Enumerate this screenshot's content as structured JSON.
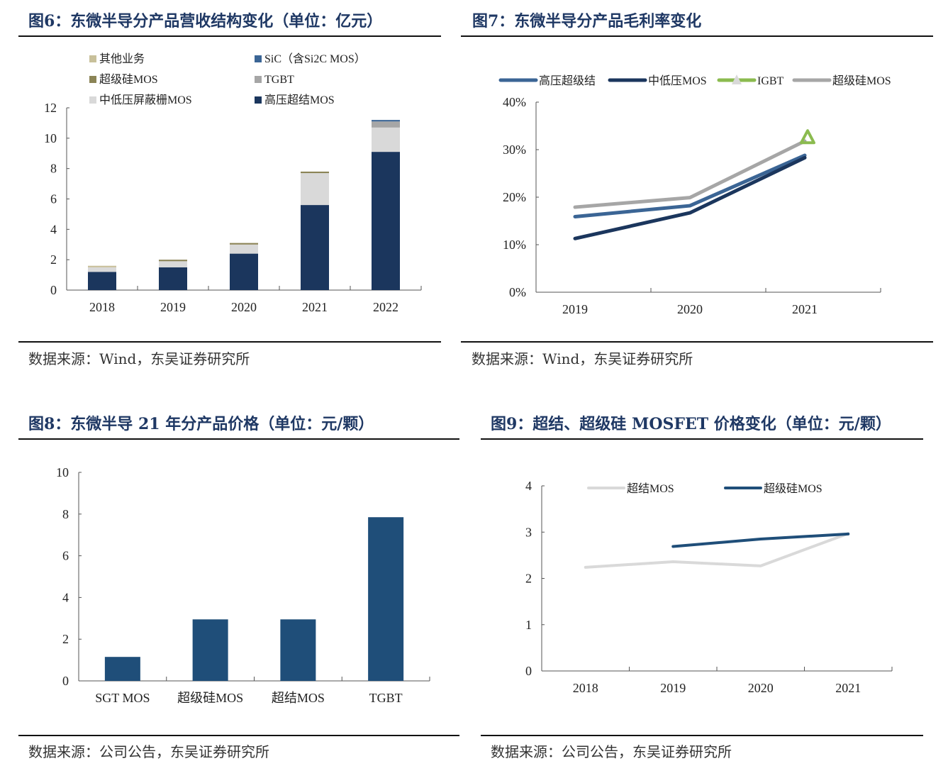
{
  "colors": {
    "title": "#1f3864",
    "navy": "#1b365d",
    "mid_blue": "#3b6595",
    "grey": "#a6a6a6",
    "light_grey": "#d9d9d9",
    "olive": "#8b8456",
    "khaki": "#c8c09a",
    "green": "#8bbb4f",
    "bar_blue": "#1f4e79"
  },
  "figures": {
    "fig6": {
      "title": "图6：东微半导分产品营收结构变化（单位：亿元）",
      "source": "数据来源：Wind，东吴证券研究所"
    },
    "fig7": {
      "title": "图7：东微半导分产品毛利率变化",
      "source": "数据来源：Wind，东吴证券研究所"
    },
    "fig8": {
      "title": "图8：东微半导 21 年分产品价格（单位：元/颗）",
      "source": "数据来源：公司公告，东吴证券研究所"
    },
    "fig9": {
      "title": "图9：超结、超级硅 MOSFET 价格变化（单位：元/颗）",
      "source": "数据来源：公司公告，东吴证券研究所"
    }
  },
  "chart_data": [
    {
      "type": "bar",
      "stacked": true,
      "title": "图6：东微半导分产品营收结构变化（单位：亿元）",
      "categories": [
        "2018",
        "2019",
        "2020",
        "2021",
        "2022"
      ],
      "ylim": [
        0,
        12
      ],
      "yticks": [
        "0",
        "2",
        "4",
        "6",
        "8",
        "10",
        "12"
      ],
      "legend_position": "top",
      "series": [
        {
          "name": "高压超结MOS",
          "color": "#1b365d",
          "values": [
            1.2,
            1.5,
            2.4,
            5.6,
            9.1
          ]
        },
        {
          "name": "中低压屏蔽栅MOS",
          "color": "#d9d9d9",
          "values": [
            0.3,
            0.4,
            0.6,
            2.1,
            1.6
          ]
        },
        {
          "name": "TGBT",
          "color": "#a6a6a6",
          "values": [
            0,
            0,
            0,
            0,
            0.4
          ]
        },
        {
          "name": "超级硅MOS",
          "color": "#8b8456",
          "values": [
            0,
            0.1,
            0.1,
            0.1,
            0
          ]
        },
        {
          "name": "SiC（含Si2C MOS）",
          "color": "#3b6595",
          "values": [
            0,
            0,
            0,
            0,
            0.1
          ]
        },
        {
          "name": "其他业务",
          "color": "#c8c09a",
          "values": [
            0.1,
            0,
            0,
            0,
            0
          ]
        }
      ],
      "legend_order": [
        "其他业务",
        "SiC（含Si2C MOS）",
        "超级硅MOS",
        "TGBT",
        "中低压屏蔽栅MOS",
        "高压超结MOS"
      ]
    },
    {
      "type": "line",
      "title": "图7：东微半导分产品毛利率变化",
      "categories": [
        "2019",
        "2020",
        "2021"
      ],
      "ylim": [
        0,
        40
      ],
      "yticks": [
        "0%",
        "10%",
        "20%",
        "30%",
        "40%"
      ],
      "legend_position": "top",
      "series": [
        {
          "name": "高压超级结",
          "color": "#3b6595",
          "values": [
            15.9,
            18.2,
            28.8
          ]
        },
        {
          "name": "中低压MOS",
          "color": "#1b365d",
          "values": [
            11.3,
            16.7,
            28.3
          ]
        },
        {
          "name": "IGBT",
          "color": "#8bbb4f",
          "marker": "triangle",
          "values": [
            null,
            null,
            32.5
          ]
        },
        {
          "name": "超级硅MOS",
          "color": "#a6a6a6",
          "values": [
            17.9,
            19.9,
            31.8
          ]
        }
      ]
    },
    {
      "type": "bar",
      "title": "图8：东微半导 21 年分产品价格（单位：元/颗）",
      "categories": [
        "SGT MOS",
        "超级硅MOS",
        "超结MOS",
        "TGBT"
      ],
      "values": [
        1.15,
        2.95,
        2.95,
        7.85
      ],
      "color": "#1f4e79",
      "ylim": [
        0,
        10
      ],
      "yticks": [
        "0",
        "2",
        "4",
        "6",
        "8",
        "10"
      ]
    },
    {
      "type": "line",
      "title": "图9：超结、超级硅 MOSFET 价格变化（单位：元/颗）",
      "categories": [
        "2018",
        "2019",
        "2020",
        "2021"
      ],
      "ylim": [
        0,
        4
      ],
      "yticks": [
        "0",
        "1",
        "2",
        "3",
        "4"
      ],
      "legend_position": "top",
      "series": [
        {
          "name": "超结MOS",
          "color": "#d9d9d9",
          "values": [
            2.24,
            2.36,
            2.27,
            2.97
          ]
        },
        {
          "name": "超级硅MOS",
          "color": "#1f4e79",
          "values": [
            null,
            2.69,
            2.85,
            2.96
          ]
        }
      ]
    }
  ]
}
